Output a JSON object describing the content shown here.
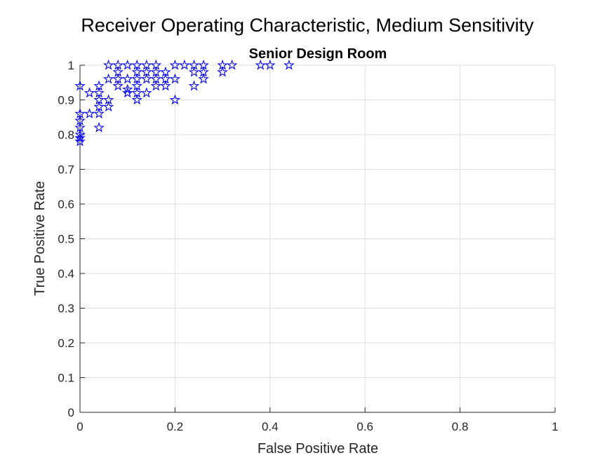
{
  "figure": {
    "title": "Receiver Operating Characteristic, Medium Sensitivity"
  },
  "chart_data": {
    "type": "scatter",
    "title": "Senior Design Room",
    "xlabel": "False Positive Rate",
    "ylabel": "True Positive Rate",
    "xlim": [
      0,
      1
    ],
    "ylim": [
      0,
      1
    ],
    "xticks": [
      0,
      0.2,
      0.4,
      0.6,
      0.8,
      1
    ],
    "xtick_labels": [
      "0",
      "0.2",
      "0.4",
      "0.6",
      "0.8",
      "1"
    ],
    "yticks": [
      0,
      0.1,
      0.2,
      0.3,
      0.4,
      0.5,
      0.6,
      0.7,
      0.8,
      0.9,
      1
    ],
    "ytick_labels": [
      "0",
      "0.1",
      "0.2",
      "0.3",
      "0.4",
      "0.5",
      "0.6",
      "0.7",
      "0.8",
      "0.9",
      "1"
    ],
    "grid": true,
    "marker": "pentagram",
    "marker_color": "#0000ff",
    "series": [
      {
        "points": [
          [
            0,
            0.94
          ],
          [
            0,
            0.86
          ],
          [
            0,
            0.84
          ],
          [
            0,
            0.82
          ],
          [
            0,
            0.8
          ],
          [
            0,
            0.79
          ],
          [
            0,
            0.78
          ],
          [
            0.02,
            0.92
          ],
          [
            0.02,
            0.86
          ],
          [
            0.04,
            0.94
          ],
          [
            0.04,
            0.92
          ],
          [
            0.04,
            0.9
          ],
          [
            0.04,
            0.88
          ],
          [
            0.04,
            0.86
          ],
          [
            0.04,
            0.82
          ],
          [
            0.06,
            1
          ],
          [
            0.06,
            0.96
          ],
          [
            0.06,
            0.9
          ],
          [
            0.06,
            0.88
          ],
          [
            0.08,
            1
          ],
          [
            0.08,
            0.98
          ],
          [
            0.08,
            0.96
          ],
          [
            0.08,
            0.94
          ],
          [
            0.1,
            1
          ],
          [
            0.1,
            0.96
          ],
          [
            0.1,
            0.93
          ],
          [
            0.1,
            0.92
          ],
          [
            0.12,
            1
          ],
          [
            0.12,
            0.98
          ],
          [
            0.12,
            0.96
          ],
          [
            0.12,
            0.94
          ],
          [
            0.12,
            0.92
          ],
          [
            0.12,
            0.9
          ],
          [
            0.14,
            1
          ],
          [
            0.14,
            0.98
          ],
          [
            0.14,
            0.96
          ],
          [
            0.14,
            0.92
          ],
          [
            0.16,
            1
          ],
          [
            0.16,
            0.98
          ],
          [
            0.16,
            0.96
          ],
          [
            0.16,
            0.94
          ],
          [
            0.18,
            0.98
          ],
          [
            0.18,
            0.96
          ],
          [
            0.18,
            0.94
          ],
          [
            0.2,
            1
          ],
          [
            0.2,
            0.96
          ],
          [
            0.2,
            0.9
          ],
          [
            0.22,
            1
          ],
          [
            0.24,
            1
          ],
          [
            0.24,
            0.98
          ],
          [
            0.24,
            0.94
          ],
          [
            0.26,
            1
          ],
          [
            0.26,
            0.98
          ],
          [
            0.26,
            0.96
          ],
          [
            0.3,
            1
          ],
          [
            0.3,
            0.98
          ],
          [
            0.32,
            1
          ],
          [
            0.38,
            1
          ],
          [
            0.4,
            1
          ],
          [
            0.44,
            1
          ]
        ]
      }
    ]
  }
}
